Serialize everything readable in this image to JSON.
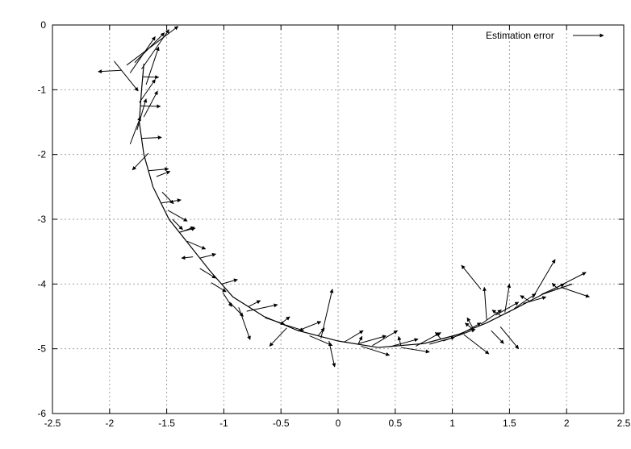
{
  "chart_data": {
    "type": "vector-field",
    "title": "",
    "xlabel": "",
    "ylabel": "",
    "xlim": [
      -2.5,
      2.5
    ],
    "ylim": [
      -6,
      0
    ],
    "xticks": [
      -2.5,
      -2,
      -1.5,
      -1,
      -0.5,
      0,
      0.5,
      1,
      1.5,
      2,
      2.5
    ],
    "xtick_labels": [
      "-2.5",
      "-2",
      "-1.5",
      "-1",
      "-0.5",
      "0",
      "0.5",
      "1",
      "1.5",
      "2",
      "2.5"
    ],
    "yticks": [
      0,
      -1,
      -2,
      -3,
      -4,
      -5,
      -6
    ],
    "ytick_labels": [
      "0",
      "-1",
      "-2",
      "-3",
      "-4",
      "-5",
      "-6"
    ],
    "grid": true,
    "legend": {
      "position": "top-right",
      "entries": [
        "Estimation error"
      ]
    },
    "series": [
      {
        "name": "Estimation error",
        "color": "#000000",
        "path": [
          [
            -1.7,
            -0.6
          ],
          [
            -1.72,
            -1.0
          ],
          [
            -1.74,
            -1.5
          ],
          [
            -1.7,
            -2.0
          ],
          [
            -1.62,
            -2.5
          ],
          [
            -1.48,
            -3.0
          ],
          [
            -1.3,
            -3.4
          ],
          [
            -1.12,
            -3.8
          ],
          [
            -0.92,
            -4.2
          ],
          [
            -0.65,
            -4.5
          ],
          [
            -0.35,
            -4.72
          ],
          [
            0.0,
            -4.88
          ],
          [
            0.35,
            -4.98
          ],
          [
            0.75,
            -4.92
          ],
          [
            1.05,
            -4.78
          ],
          [
            1.3,
            -4.6
          ],
          [
            1.55,
            -4.38
          ],
          [
            1.8,
            -4.15
          ],
          [
            2.05,
            -4.0
          ]
        ],
        "arrows": [
          [
            -1.85,
            -0.62,
            -1.4,
            -0.02
          ],
          [
            -1.72,
            -0.68,
            -1.48,
            -0.07
          ],
          [
            -1.78,
            -0.58,
            -1.52,
            -0.12
          ],
          [
            -1.82,
            -0.74,
            -1.6,
            -0.18
          ],
          [
            -1.68,
            -0.92,
            -1.57,
            -0.34
          ],
          [
            -1.9,
            -0.7,
            -2.1,
            -0.72
          ],
          [
            -1.96,
            -0.56,
            -1.75,
            -1.02
          ],
          [
            -1.74,
            -1.2,
            -1.6,
            -0.84
          ],
          [
            -1.7,
            -1.42,
            -1.58,
            -1.02
          ],
          [
            -1.76,
            -1.62,
            -1.68,
            -1.14
          ],
          [
            -1.82,
            -1.84,
            -1.73,
            -1.42
          ],
          [
            -1.66,
            -1.98,
            -1.8,
            -2.24
          ],
          [
            -1.59,
            -2.34,
            -1.47,
            -2.26
          ],
          [
            -1.54,
            -2.58,
            -1.44,
            -2.76
          ],
          [
            -1.49,
            -2.86,
            -1.32,
            -3.03
          ],
          [
            -1.45,
            -3.0,
            -1.36,
            -3.16
          ],
          [
            -1.38,
            -3.2,
            -1.26,
            -3.12
          ],
          [
            -1.32,
            -3.34,
            -1.16,
            -3.46
          ],
          [
            -1.27,
            -3.58,
            -1.37,
            -3.6
          ],
          [
            -1.21,
            -3.76,
            -1.07,
            -3.91
          ],
          [
            -1.11,
            -3.98,
            -0.98,
            -4.12
          ],
          [
            -1.01,
            -4.13,
            -0.93,
            -4.35
          ],
          [
            -0.95,
            -4.28,
            -0.83,
            -4.5
          ],
          [
            -0.87,
            -4.36,
            -0.77,
            -4.86
          ],
          [
            -0.8,
            -4.42,
            -0.53,
            -4.32
          ],
          [
            -0.64,
            -4.52,
            -0.47,
            -4.62
          ],
          [
            -0.5,
            -4.61,
            -0.3,
            -4.72
          ],
          [
            -0.35,
            -4.72,
            -0.15,
            -4.58
          ],
          [
            -0.25,
            -4.8,
            -0.05,
            -4.95
          ],
          [
            -0.15,
            -4.84,
            -0.05,
            -4.08
          ],
          [
            -0.08,
            -4.88,
            -0.03,
            -5.28
          ],
          [
            0.05,
            -4.9,
            0.22,
            -4.72
          ],
          [
            0.18,
            -4.92,
            0.42,
            -4.8
          ],
          [
            0.3,
            -4.95,
            0.52,
            -4.72
          ],
          [
            0.45,
            -4.97,
            0.7,
            -4.85
          ],
          [
            0.55,
            -4.98,
            0.8,
            -5.05
          ],
          [
            0.68,
            -4.96,
            0.9,
            -4.75
          ],
          [
            0.8,
            -4.93,
            1.02,
            -4.82
          ],
          [
            0.92,
            -4.88,
            1.2,
            -4.7
          ],
          [
            1.05,
            -4.8,
            1.25,
            -4.6
          ],
          [
            1.1,
            -4.78,
            1.32,
            -5.08
          ],
          [
            1.18,
            -4.68,
            1.13,
            -4.52
          ],
          [
            1.25,
            -4.62,
            1.43,
            -4.4
          ],
          [
            1.3,
            -4.55,
            1.28,
            -4.05
          ],
          [
            1.38,
            -4.48,
            1.58,
            -4.28
          ],
          [
            1.46,
            -4.44,
            1.5,
            -4.0
          ],
          [
            1.54,
            -4.38,
            1.73,
            -4.15
          ],
          [
            1.62,
            -4.3,
            1.82,
            -4.2
          ],
          [
            1.7,
            -4.22,
            1.9,
            -3.62
          ],
          [
            1.78,
            -4.16,
            1.98,
            -4.0
          ],
          [
            1.86,
            -4.1,
            2.17,
            -3.82
          ],
          [
            1.95,
            -4.05,
            2.2,
            -4.2
          ],
          [
            1.25,
            -4.08,
            1.08,
            -3.71
          ],
          [
            1.34,
            -4.72,
            1.45,
            -4.92
          ],
          [
            1.42,
            -4.66,
            1.58,
            -5.0
          ],
          [
            0.2,
            -4.96,
            0.45,
            -5.1
          ],
          [
            -0.45,
            -4.68,
            -0.6,
            -4.96
          ]
        ]
      }
    ]
  }
}
